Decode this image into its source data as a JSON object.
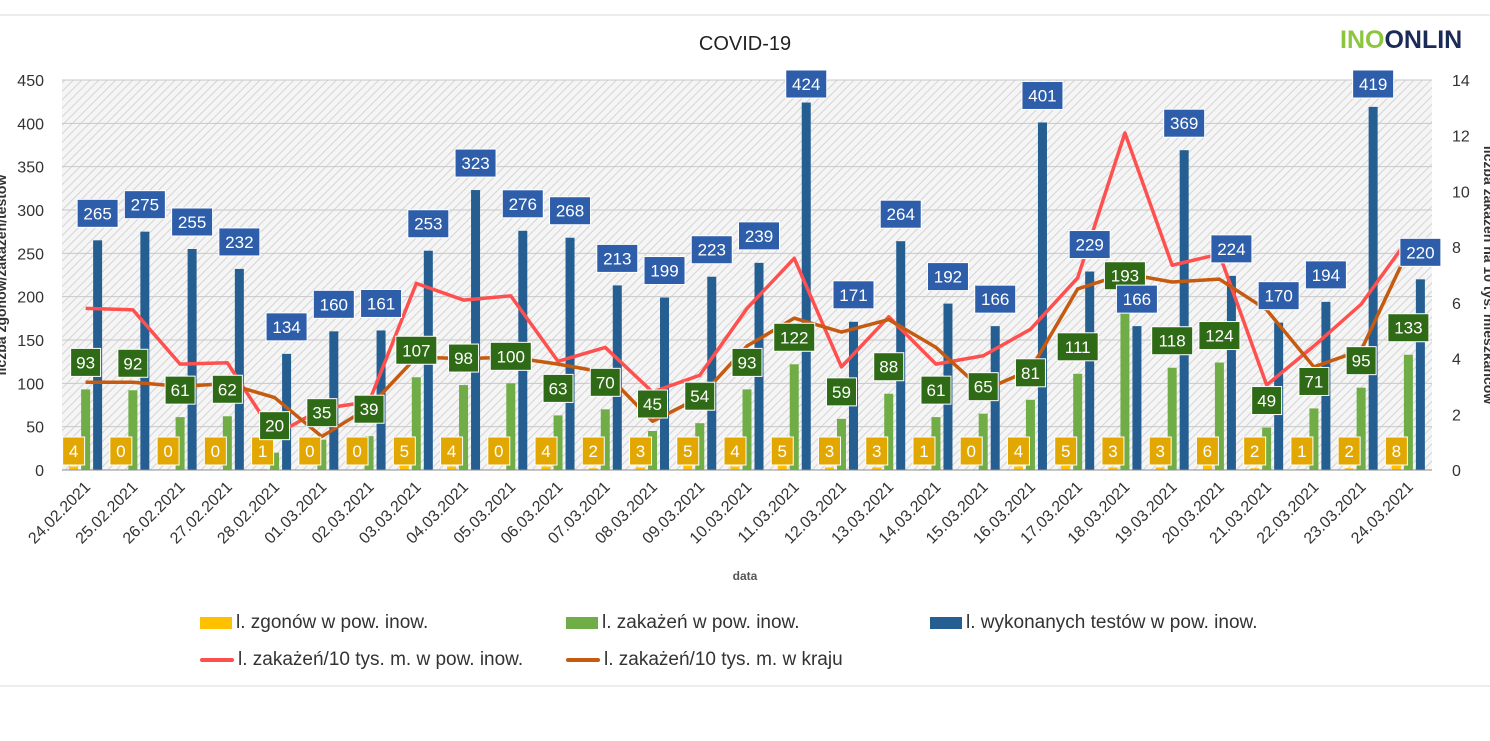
{
  "logo": {
    "part1": "INO",
    "part2": "ONLIN"
  },
  "colors": {
    "zgony": "#ffc000",
    "zakazenia": "#70ad47",
    "testy": "#255e91",
    "line_pow": "#ff5050",
    "line_kraj": "#c55a11",
    "label_blue_bg": "#2e5eaa",
    "label_green_bg": "#2f6a17",
    "label_yellow_bg": "#e2a700"
  },
  "chart_data": {
    "type": "bar",
    "title": "COVID-19",
    "xlabel": "data",
    "ylabel_left": "liczba zgonów/zakażeń/testów",
    "ylabel_right": "liczba zakażeń na 10 tys. mieszkańców",
    "ylim_left": [
      0,
      450
    ],
    "ylim_right": [
      0,
      14
    ],
    "yticks_left": [
      0,
      50,
      100,
      150,
      200,
      250,
      300,
      350,
      400,
      450
    ],
    "yticks_right": [
      0,
      2,
      4,
      6,
      8,
      10,
      12,
      14
    ],
    "categories": [
      "24.02.2021",
      "25.02.2021",
      "26.02.2021",
      "27.02.2021",
      "28.02.2021",
      "01.03.2021",
      "02.03.2021",
      "03.03.2021",
      "04.03.2021",
      "05.03.2021",
      "06.03.2021",
      "07.03.2021",
      "08.03.2021",
      "09.03.2021",
      "10.03.2021",
      "11.03.2021",
      "12.03.2021",
      "13.03.2021",
      "14.03.2021",
      "15.03.2021",
      "16.03.2021",
      "17.03.2021",
      "18.03.2021",
      "19.03.2021",
      "20.03.2021",
      "21.03.2021",
      "22.03.2021",
      "23.03.2021",
      "24.03.2021"
    ],
    "series": [
      {
        "name": "l. zgonów w pow. inow.",
        "type": "bar",
        "axis": "left",
        "values": [
          4,
          0,
          0,
          0,
          1,
          0,
          0,
          5,
          4,
          0,
          4,
          2,
          3,
          5,
          4,
          5,
          3,
          3,
          1,
          0,
          4,
          5,
          3,
          3,
          6,
          2,
          1,
          2,
          8
        ]
      },
      {
        "name": "l. zakażeń w pow. inow.",
        "type": "bar",
        "axis": "left",
        "values": [
          93,
          92,
          61,
          62,
          20,
          35,
          39,
          107,
          98,
          100,
          63,
          70,
          45,
          54,
          93,
          122,
          59,
          88,
          61,
          65,
          81,
          111,
          193,
          118,
          124,
          49,
          71,
          95,
          133
        ]
      },
      {
        "name": "l. wykonanych testów w pow. inow.",
        "type": "bar",
        "axis": "left",
        "values": [
          265,
          275,
          255,
          232,
          134,
          160,
          161,
          253,
          323,
          276,
          268,
          213,
          199,
          223,
          239,
          424,
          171,
          264,
          192,
          166,
          401,
          229,
          166,
          369,
          224,
          170,
          194,
          419,
          220
        ]
      },
      {
        "name": "l. zakażeń/10 tys. m. w pow. inow.",
        "type": "line",
        "axis": "right",
        "values": [
          5.8,
          5.75,
          3.8,
          3.85,
          1.25,
          2.2,
          2.45,
          6.7,
          6.1,
          6.25,
          3.9,
          4.4,
          2.8,
          3.4,
          5.8,
          7.6,
          3.7,
          5.5,
          3.8,
          4.1,
          5.05,
          6.9,
          12.1,
          7.35,
          7.75,
          3.05,
          4.45,
          5.95,
          8.3
        ]
      },
      {
        "name": "l. zakażeń/10 tys. m. w kraju",
        "type": "line",
        "axis": "right",
        "values": [
          3.15,
          3.15,
          3.0,
          3.1,
          2.6,
          1.2,
          2.25,
          4.05,
          4.0,
          4.05,
          3.8,
          3.5,
          1.75,
          2.6,
          4.45,
          5.45,
          4.95,
          5.4,
          4.4,
          2.85,
          3.6,
          6.5,
          7.05,
          6.75,
          6.85,
          5.75,
          3.7,
          4.3,
          7.9
        ]
      }
    ]
  }
}
